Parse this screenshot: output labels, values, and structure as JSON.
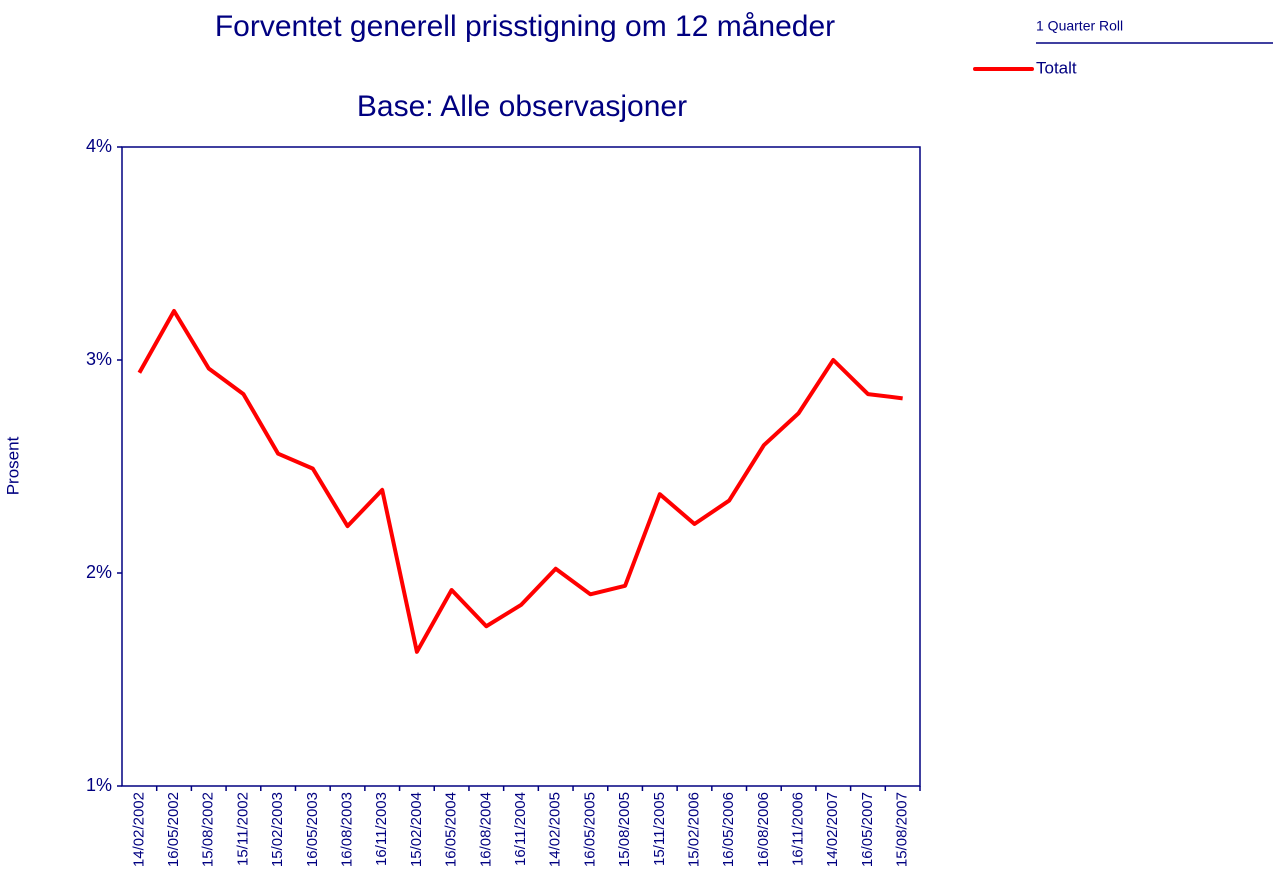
{
  "chart_data": {
    "type": "line",
    "title": "Forventet generell prisstigning om 12 måneder",
    "subtitle": "Base: Alle observasjoner",
    "y_label": "Prosent",
    "legend_title": "1 Quarter Roll",
    "legend": "top-right",
    "categories": [
      "14/02/2002",
      "16/05/2002",
      "15/08/2002",
      "15/11/2002",
      "15/02/2003",
      "16/05/2003",
      "16/08/2003",
      "16/11/2003",
      "15/02/2004",
      "16/05/2004",
      "16/08/2004",
      "16/11/2004",
      "14/02/2005",
      "16/05/2005",
      "15/08/2005",
      "15/11/2005",
      "15/02/2006",
      "16/05/2006",
      "16/08/2006",
      "16/11/2006",
      "14/02/2007",
      "16/05/2007",
      "15/08/2007"
    ],
    "series": [
      {
        "name": "Totalt",
        "color": "#ff0000",
        "values": [
          2.94,
          3.23,
          2.96,
          2.84,
          2.56,
          2.49,
          2.22,
          2.39,
          1.63,
          1.92,
          1.75,
          1.85,
          2.02,
          1.9,
          1.94,
          2.37,
          2.23,
          2.34,
          2.6,
          2.75,
          3.0,
          2.84,
          2.82
        ]
      }
    ],
    "ylim": [
      1,
      4
    ],
    "yticks": [
      {
        "value": 1,
        "label": "1%"
      },
      {
        "value": 2,
        "label": "2%"
      },
      {
        "value": 3,
        "label": "3%"
      },
      {
        "value": 4,
        "label": "4%"
      }
    ],
    "grid": false
  }
}
